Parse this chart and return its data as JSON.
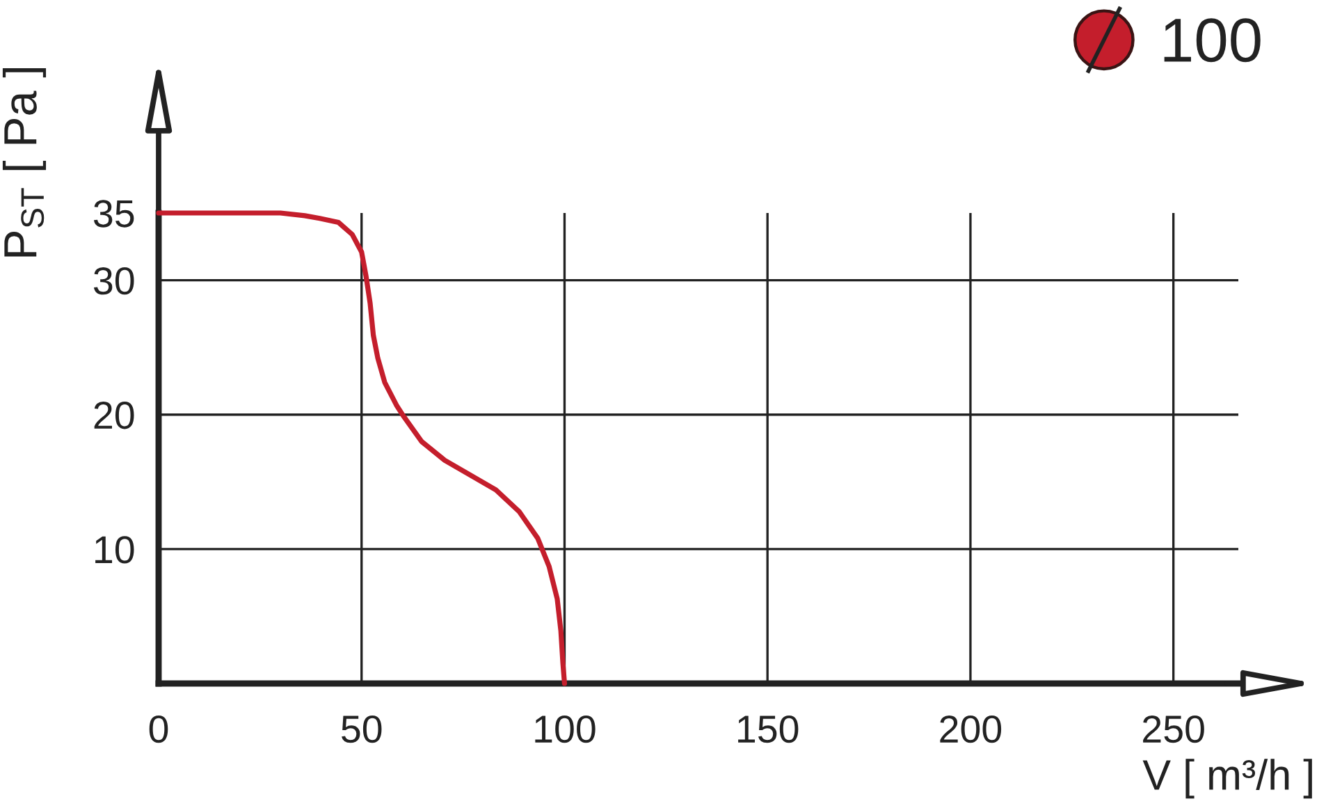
{
  "chart_data": {
    "type": "line",
    "xlabel": "V [ m³/h ]",
    "ylabel": "P$_{ST}$ [ Pa ]",
    "x": [
      0,
      10,
      20,
      30,
      36,
      39.7,
      44.3,
      47.7,
      50,
      51.1,
      52.1,
      52.9,
      54,
      55.7,
      58.6,
      60.3,
      64.8,
      70.5,
      77.4,
      83.1,
      88.8,
      93.4,
      96.2,
      98.2,
      99.1,
      99.6,
      100
    ],
    "series": [
      {
        "name": "100",
        "color": "#c41e2c",
        "values": [
          35,
          35,
          35,
          35,
          34.8,
          34.6,
          34.3,
          33.4,
          32.1,
          30.3,
          28.3,
          25.9,
          24.2,
          22.4,
          20.7,
          19.9,
          18,
          16.6,
          15.4,
          14.4,
          12.8,
          10.8,
          8.7,
          6.3,
          3.9,
          1.5,
          0
        ]
      }
    ],
    "xlim": [
      0,
      266
    ],
    "ylim": [
      0,
      35
    ],
    "xticks": [
      0,
      50,
      100,
      150,
      200,
      250
    ],
    "yticks": [
      10,
      20,
      30,
      35
    ],
    "grid": true,
    "legend": "top right"
  }
}
